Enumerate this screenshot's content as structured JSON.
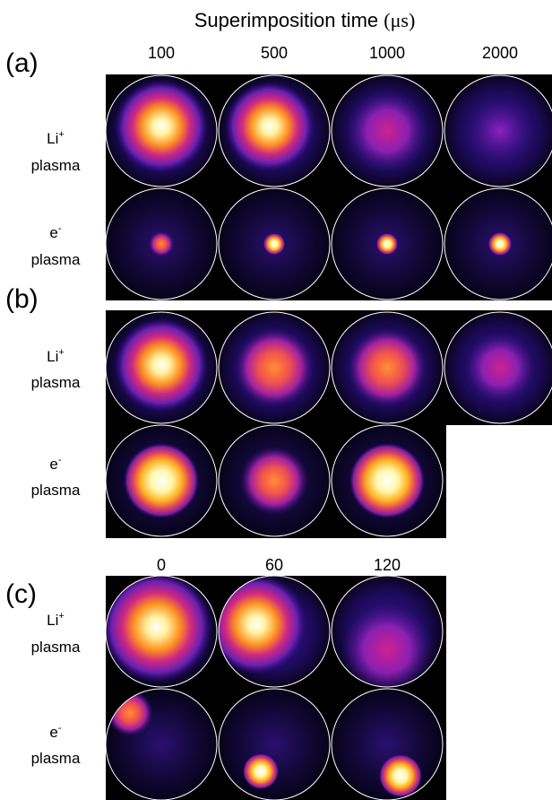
{
  "title": "Superimposition time",
  "title_unit": "(μs)",
  "panels": [
    {
      "label": "(a)",
      "columns": [
        "100",
        "500",
        "1000",
        "2000"
      ],
      "rows": [
        {
          "species": "Li",
          "charge": "+",
          "name": "plasma"
        },
        {
          "species": "e",
          "charge": "-",
          "name": "plasma"
        }
      ]
    },
    {
      "label": "(b)",
      "rows": [
        {
          "species": "Li",
          "charge": "+",
          "name": "plasma"
        },
        {
          "species": "e",
          "charge": "-",
          "name": "plasma"
        }
      ]
    },
    {
      "label": "(c)",
      "columns": [
        "0",
        "60",
        "120"
      ],
      "rows": [
        {
          "species": "Li",
          "charge": "+",
          "name": "plasma"
        },
        {
          "species": "e",
          "charge": "-",
          "name": "plasma"
        }
      ]
    }
  ]
}
